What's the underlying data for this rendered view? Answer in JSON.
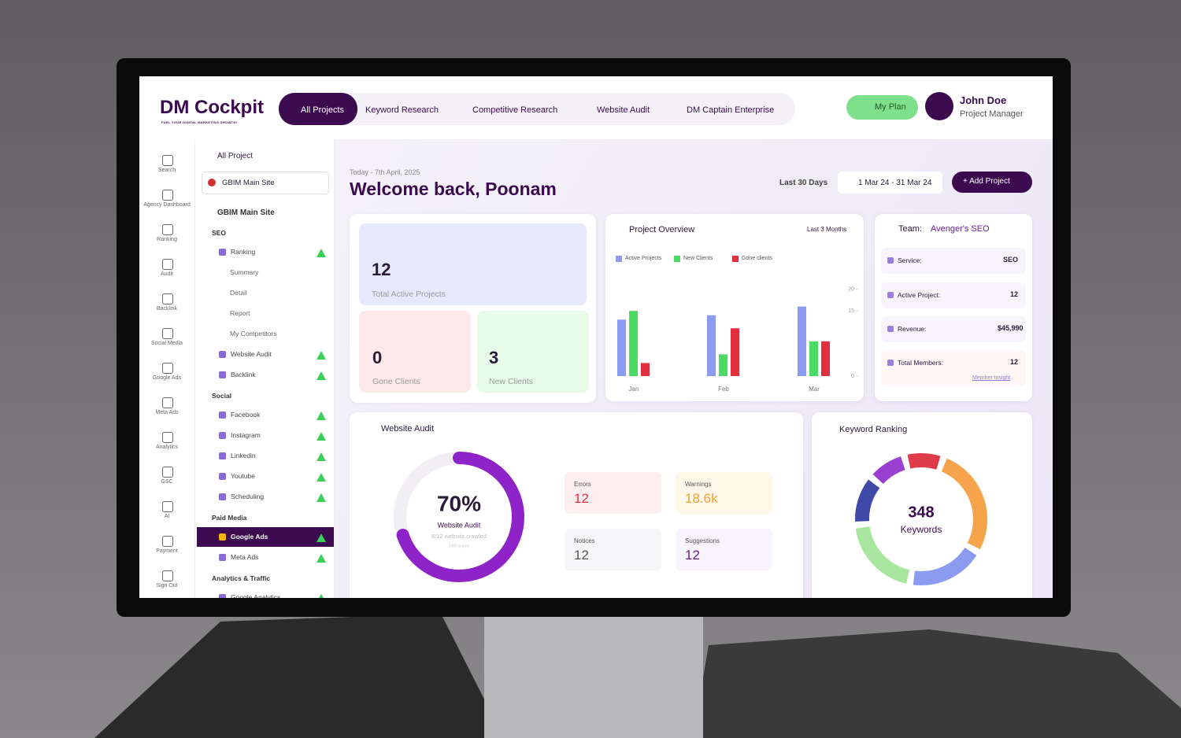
{
  "header": {
    "logo": "DM Cockpit",
    "tagline": "FUEL YOUR DIGITAL MARKETING GROWTH!",
    "nav": [
      "All Projects",
      "Keyword Research",
      "Competitive Research",
      "Website Audit",
      "DM Captain Enterprise"
    ],
    "my_plan": "My Plan",
    "user": {
      "name": "John Doe",
      "role": "Project Manager"
    }
  },
  "icon_rail": [
    "Search",
    "Agency Dashboard",
    "Ranking",
    "Audit",
    "Backlink",
    "Social Media",
    "Google Ads",
    "Meta Ads",
    "Analytics",
    "GSC",
    "AI",
    "Payment",
    "Sign Out"
  ],
  "sidebar": {
    "all_project": "All Project",
    "site_select": "GBIM Main Site",
    "site": "GBIM Main Site",
    "sections": [
      {
        "title": "SEO",
        "items": [
          {
            "label": "Ranking",
            "children": [
              "Summary",
              "Detail",
              "Report",
              "My Competitors"
            ]
          },
          {
            "label": "Website Audit"
          },
          {
            "label": "Backlink"
          }
        ]
      },
      {
        "title": "Social",
        "items": [
          {
            "label": "Facebook"
          },
          {
            "label": "Instagram"
          },
          {
            "label": "Linkedin"
          },
          {
            "label": "Youtube"
          },
          {
            "label": "Scheduling"
          }
        ]
      },
      {
        "title": "Paid Media",
        "items": [
          {
            "label": "Google Ads",
            "active": true
          },
          {
            "label": "Meta Ads"
          }
        ]
      },
      {
        "title": "Analytics & Traffic",
        "items": [
          {
            "label": "Google Analytics"
          }
        ]
      }
    ]
  },
  "main": {
    "date": "Today - 7th April, 2025",
    "welcome": "Welcome back, Poonam",
    "range": "Last 30 Days",
    "dates": "1 Mar 24 - 31 Mar 24",
    "add_project": "Add Project",
    "stats": [
      {
        "value": 12,
        "label": "Total Active Projects"
      },
      {
        "value": 0,
        "label": "Gone Clients"
      },
      {
        "value": 3,
        "label": "New Clients"
      }
    ],
    "team": {
      "title": "Team:",
      "name": "Avenger's SEO",
      "rows": [
        {
          "label": "Service:",
          "value": "SEO"
        },
        {
          "label": "Active Project:",
          "value": 12
        },
        {
          "label": "Revenue:",
          "value": "$45,990"
        },
        {
          "label": "Total Members:",
          "value": 12
        }
      ],
      "link": "Member Insight"
    },
    "website_audit": {
      "title": "Website Audit",
      "percent": 70,
      "percent_label": "70%",
      "caption": "Website Audit",
      "crawled": "8/12 website crawled",
      "pages": "1000 pages",
      "metrics": [
        {
          "label": "Errors",
          "value": 12
        },
        {
          "label": "Warnings",
          "value": "18.6k"
        },
        {
          "label": "Notices",
          "value": 12
        },
        {
          "label": "Suggestions",
          "value": 12
        }
      ]
    },
    "keyword_ranking": {
      "title": "Keyword Ranking",
      "value": 348,
      "label": "Keywords"
    }
  },
  "chart_data": {
    "type": "bar",
    "title": "Project Overview",
    "subtitle": "Last 3 Months",
    "categories": [
      "Jan",
      "Feb",
      "Mar"
    ],
    "series": [
      {
        "name": "Active Projects",
        "color": "#8b9cf0",
        "values": [
          13,
          14,
          16
        ]
      },
      {
        "name": "New Clients",
        "color": "#4cd964",
        "values": [
          15,
          5,
          8
        ]
      },
      {
        "name": "Gone clients",
        "color": "#e0303e",
        "values": [
          3,
          11,
          8
        ]
      }
    ],
    "ylim": [
      0,
      21
    ],
    "yticks": [
      0,
      15,
      20
    ]
  }
}
